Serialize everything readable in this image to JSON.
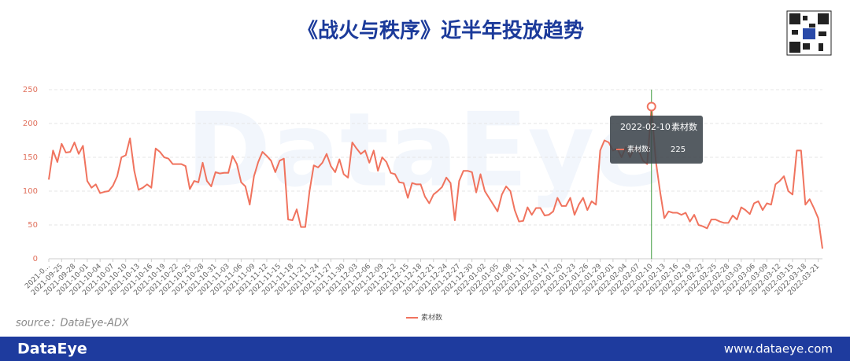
{
  "header": {
    "title": "《战火与秩序》近半年投放趋势"
  },
  "chart_data": {
    "type": "line",
    "watermark": "DataEye",
    "categories": [
      "2021-0...",
      null,
      null,
      "2021-09-25",
      null,
      null,
      "2021-09-28",
      null,
      null,
      "2021-10-01",
      null,
      null,
      "2021-10-04",
      null,
      null,
      "2021-10-07",
      null,
      null,
      "2021-10-10",
      null,
      null,
      "2021-10-13",
      null,
      null,
      "2021-10-16",
      null,
      null,
      "2021-10-19",
      null,
      null,
      "2021-10-22",
      null,
      null,
      "2021-10-25",
      null,
      null,
      "2021-10-28",
      null,
      null,
      "2021-10-31",
      null,
      null,
      "2021-11-03",
      null,
      null,
      "2021-11-06",
      null,
      null,
      "2021-11-09",
      null,
      null,
      "2021-11-12",
      null,
      null,
      "2021-11-15",
      null,
      null,
      "2021-11-18",
      null,
      null,
      "2021-11-21",
      null,
      null,
      "2021-11-24",
      null,
      null,
      "2021-11-27",
      null,
      null,
      "2021-11-30",
      null,
      null,
      "2021-12-03",
      null,
      null,
      "2021-12-06",
      null,
      null,
      "2021-12-09",
      null,
      null,
      "2021-12-12",
      null,
      null,
      "2021-12-15",
      null,
      null,
      "2021-12-18",
      null,
      null,
      "2021-12-21",
      null,
      null,
      "2021-12-24",
      null,
      null,
      "2021-12-27",
      null,
      null,
      "2021-12-30",
      null,
      null,
      "2022-01-02",
      null,
      null,
      "2022-01-05",
      null,
      null,
      "2022-01-08",
      null,
      null,
      "2022-01-11",
      null,
      null,
      "2022-01-14",
      null,
      null,
      "2022-01-17",
      null,
      null,
      "2022-01-20",
      null,
      null,
      "2022-01-23",
      null,
      null,
      "2022-01-26",
      null,
      null,
      "2022-01-29",
      null,
      null,
      "2022-02-01",
      null,
      null,
      "2022-02-04",
      null,
      null,
      "2022-02-07",
      null,
      null,
      "2022-02-10",
      null,
      null,
      "2022-02-13",
      null,
      null,
      "2022-02-16",
      null,
      null,
      "2022-02-19",
      null,
      null,
      "2022-02-22",
      null,
      null,
      "2022-02-25",
      null,
      null,
      "2022-02-28",
      null,
      null,
      "2022-03-03",
      null,
      null,
      "2022-03-06",
      null,
      null,
      "2022-03-09",
      null,
      null,
      "2022-03-12",
      null,
      null,
      "2022-03-15",
      null,
      null,
      "2022-03-18",
      null,
      null,
      "2022-03-21",
      null
    ],
    "series": [
      {
        "name": "素材数",
        "color": "#f0735e",
        "values": [
          117,
          160,
          143,
          170,
          157,
          158,
          172,
          155,
          167,
          115,
          105,
          110,
          97,
          99,
          100,
          108,
          122,
          150,
          153,
          178,
          130,
          102,
          105,
          110,
          105,
          163,
          158,
          150,
          148,
          140,
          140,
          140,
          137,
          103,
          115,
          113,
          142,
          115,
          107,
          128,
          126,
          127,
          127,
          152,
          140,
          113,
          107,
          80,
          122,
          143,
          158,
          152,
          145,
          128,
          145,
          148,
          58,
          57,
          73,
          47,
          47,
          100,
          138,
          135,
          142,
          155,
          137,
          128,
          147,
          125,
          120,
          172,
          163,
          155,
          160,
          142,
          160,
          130,
          150,
          143,
          127,
          125,
          113,
          112,
          90,
          112,
          110,
          110,
          92,
          82,
          95,
          100,
          106,
          120,
          112,
          57,
          115,
          130,
          130,
          128,
          98,
          125,
          100,
          90,
          80,
          70,
          95,
          107,
          100,
          72,
          55,
          56,
          76,
          65,
          75,
          75,
          64,
          65,
          70,
          90,
          78,
          78,
          90,
          65,
          80,
          90,
          72,
          85,
          80,
          160,
          175,
          172,
          160,
          163,
          150,
          165,
          150,
          165,
          160,
          145,
          140,
          225,
          145,
          100,
          60,
          70,
          68,
          68,
          65,
          68,
          55,
          65,
          50,
          48,
          45,
          58,
          58,
          55,
          53,
          53,
          64,
          58,
          76,
          72,
          66,
          82,
          85,
          72,
          82,
          80,
          110,
          115,
          122,
          100,
          95,
          160,
          160,
          80,
          88,
          75,
          60,
          15
        ]
      }
    ],
    "ylim": [
      0,
      250
    ],
    "yticks": [
      0,
      50,
      100,
      150,
      200,
      250
    ],
    "grid": true,
    "tooltip_label": "素材数:"
  },
  "source": "source：DataEye-ADX",
  "footer": {
    "logo": "DataEye",
    "url": "www.dataeye.com"
  }
}
